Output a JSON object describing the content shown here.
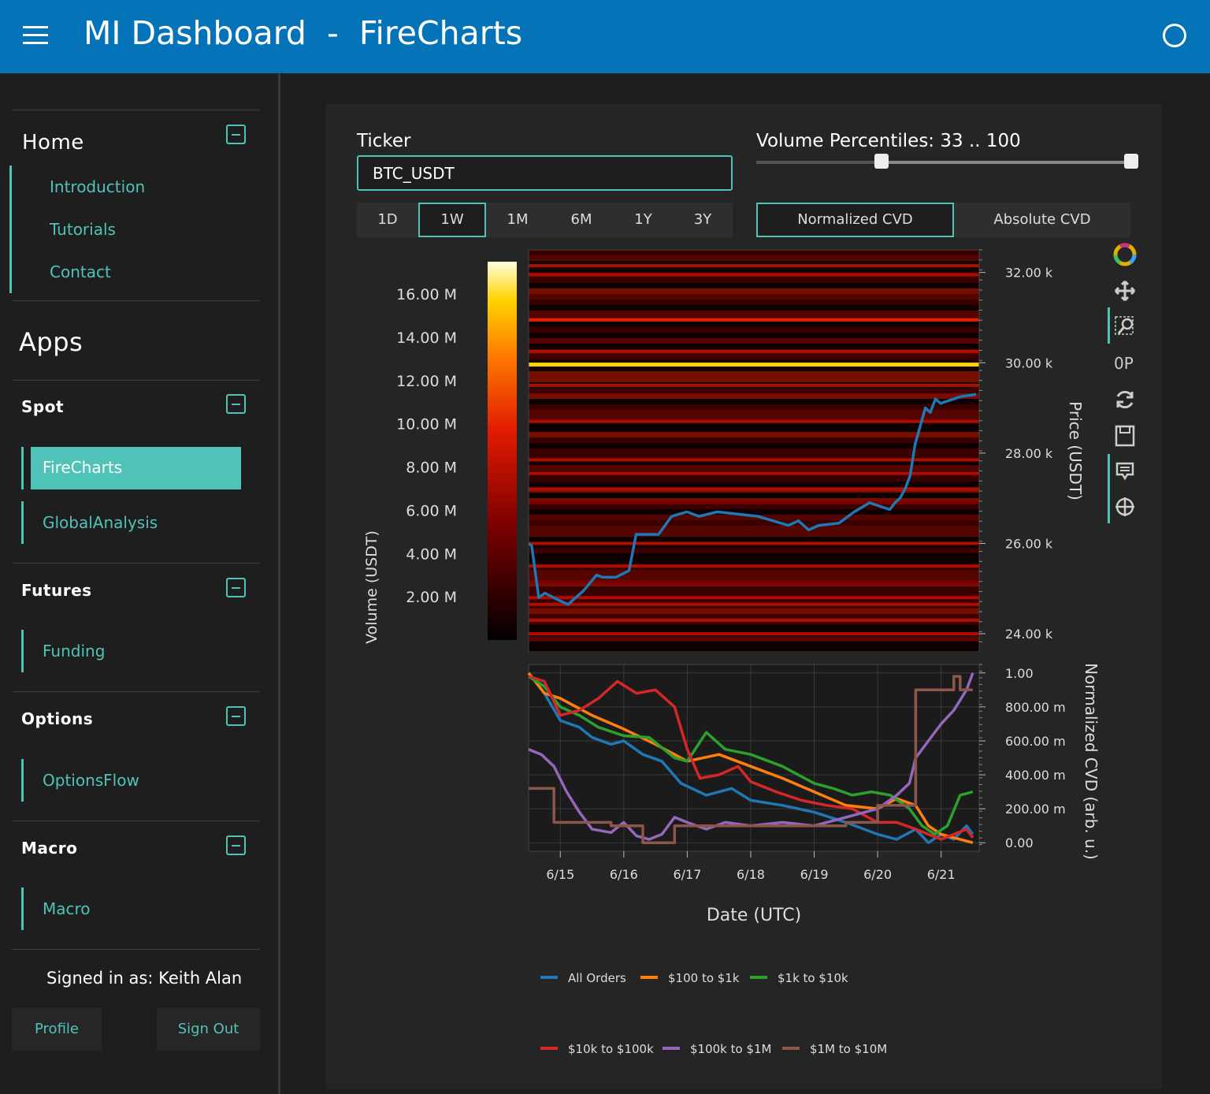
{
  "header": {
    "title": "MI Dashboard  -  FireCharts"
  },
  "sidebar": {
    "home": {
      "title": "Home",
      "links": [
        "Introduction",
        "Tutorials",
        "Contact"
      ]
    },
    "apps_title": "Apps",
    "sections": [
      {
        "title": "Spot",
        "links": [
          "FireCharts",
          "GlobalAnalysis"
        ]
      },
      {
        "title": "Futures",
        "links": [
          "Funding"
        ]
      },
      {
        "title": "Options",
        "links": [
          "OptionsFlow"
        ]
      },
      {
        "title": "Macro",
        "links": [
          "Macro"
        ]
      }
    ],
    "signed_in": "Signed in as: Keith Alan",
    "profile_label": "Profile",
    "signout_label": "Sign Out"
  },
  "controls": {
    "ticker_label": "Ticker",
    "ticker_value": "BTC_USDT",
    "volume_label": "Volume Percentiles: 33 .. 100",
    "volume_range": [
      33,
      100
    ],
    "timeframes": [
      "1D",
      "1W",
      "1M",
      "6M",
      "1Y",
      "3Y"
    ],
    "timeframe_selected": "1W",
    "cvd_modes": [
      "Normalized CVD",
      "Absolute CVD"
    ],
    "cvd_selected": "Normalized CVD"
  },
  "colors": {
    "accent": "#4fc3b8",
    "header": "#0473b8",
    "all_orders": "#1f77b4",
    "s100_1k": "#ff7f0e",
    "s1k_10k": "#2ca02c",
    "s10k_100k": "#d62728",
    "s100k_1m": "#9467bd",
    "s1m_10m": "#8c564b"
  },
  "modebar_icons": [
    "plotly-logo-icon",
    "pan-icon",
    "zoom-icon",
    "compare-icon",
    "reset-icon",
    "save-icon",
    "hover-icon",
    "crosshair-icon"
  ],
  "chart_data": [
    {
      "type": "heatmap",
      "colorbar_title": "Volume (USDT)",
      "colorbar_ticks": [
        "16.00 M",
        "14.00 M",
        "12.00 M",
        "10.00 M",
        "8.00 M",
        "6.00 M",
        "4.00 M",
        "2.00 M"
      ],
      "colorbar_range": [
        0,
        17500000
      ],
      "ylabel": "Price (USDT)",
      "y_ticks": [
        "32.00 k",
        "30.00 k",
        "28.00 k",
        "26.00 k",
        "24.00 k"
      ],
      "ylim": [
        23600,
        32500
      ],
      "price_series": {
        "name": "price",
        "x": [
          6.14,
          6.17,
          6.24,
          6.3,
          6.43,
          6.53,
          6.68,
          6.81,
          6.87,
          7.0,
          7.13,
          7.2,
          7.42,
          7.55,
          7.7,
          7.82,
          8.0,
          8.4,
          8.7,
          8.8,
          8.9,
          9.0,
          9.2,
          9.35,
          9.5,
          9.7,
          9.75,
          9.8,
          9.85,
          9.9,
          9.95,
          10.0,
          10.05,
          10.1,
          10.15,
          10.2,
          10.4,
          10.55
        ],
        "y": [
          26000,
          25950,
          24800,
          24900,
          24750,
          24650,
          24950,
          25300,
          25250,
          25250,
          25400,
          26200,
          26200,
          26600,
          26700,
          26600,
          26700,
          26600,
          26400,
          26500,
          26300,
          26400,
          26450,
          26700,
          26900,
          26750,
          26900,
          27000,
          27200,
          27500,
          28200,
          28600,
          29000,
          28900,
          29200,
          29100,
          29250,
          29300
        ]
      },
      "bands": [
        {
          "price": 29960,
          "volume": 16000000
        },
        {
          "price": 31950,
          "volume": 7000000
        },
        {
          "price": 32150,
          "volume": 6000000
        },
        {
          "price": 30950,
          "volume": 8000000
        },
        {
          "price": 30250,
          "volume": 6500000
        },
        {
          "price": 29500,
          "volume": 5000000
        },
        {
          "price": 28700,
          "volume": 5500000
        },
        {
          "price": 27850,
          "volume": 6000000
        },
        {
          "price": 27550,
          "volume": 5000000
        },
        {
          "price": 27200,
          "volume": 4500000
        },
        {
          "price": 26900,
          "volume": 4000000
        },
        {
          "price": 26000,
          "volume": 4500000
        },
        {
          "price": 25500,
          "volume": 5000000
        },
        {
          "price": 25150,
          "volume": 4000000
        },
        {
          "price": 24800,
          "volume": 5500000
        },
        {
          "price": 24650,
          "volume": 4500000
        },
        {
          "price": 24300,
          "volume": 5000000
        },
        {
          "price": 24000,
          "volume": 4500000
        }
      ]
    },
    {
      "type": "line",
      "xlabel": "Date (UTC)",
      "ylabel": "Normalized CVD (arb. u.)",
      "x_ticks": [
        "6/15",
        "6/16",
        "6/17",
        "6/18",
        "6/19",
        "6/20",
        "6/21"
      ],
      "y_ticks": [
        "1.00",
        "800.00 m",
        "600.00 m",
        "400.00 m",
        "200.00 m",
        "0.00"
      ],
      "xlim": [
        14.5,
        21.6
      ],
      "ylim": [
        -0.05,
        1.05
      ],
      "series": [
        {
          "name": "All Orders",
          "x": [
            14.5,
            14.75,
            15.0,
            15.3,
            15.5,
            15.8,
            16.0,
            16.3,
            16.6,
            16.9,
            17.3,
            17.7,
            18.0,
            18.5,
            19.0,
            19.5,
            20.0,
            20.3,
            20.6,
            20.8,
            21.0,
            21.2,
            21.4,
            21.5
          ],
          "y": [
            1.0,
            0.88,
            0.72,
            0.68,
            0.62,
            0.58,
            0.6,
            0.52,
            0.48,
            0.35,
            0.28,
            0.32,
            0.25,
            0.22,
            0.18,
            0.12,
            0.05,
            0.02,
            0.08,
            0.0,
            0.05,
            0.02,
            0.1,
            0.05
          ]
        },
        {
          "name": "$100 to $1k",
          "x": [
            14.5,
            14.75,
            15.0,
            15.5,
            16.0,
            16.5,
            17.0,
            17.5,
            18.0,
            18.5,
            19.0,
            19.5,
            20.0,
            20.3,
            20.6,
            20.8,
            21.0,
            21.3,
            21.5
          ],
          "y": [
            1.0,
            0.88,
            0.85,
            0.75,
            0.67,
            0.58,
            0.48,
            0.52,
            0.45,
            0.38,
            0.3,
            0.22,
            0.2,
            0.26,
            0.22,
            0.1,
            0.05,
            0.02,
            0.0
          ]
        },
        {
          "name": "$1k to $10k",
          "x": [
            14.5,
            14.75,
            15.0,
            15.3,
            15.6,
            16.0,
            16.4,
            16.8,
            17.0,
            17.3,
            17.6,
            18.0,
            18.5,
            19.0,
            19.3,
            19.6,
            19.9,
            20.2,
            20.5,
            20.7,
            20.9,
            21.1,
            21.3,
            21.5
          ],
          "y": [
            0.98,
            0.92,
            0.8,
            0.75,
            0.68,
            0.63,
            0.62,
            0.5,
            0.48,
            0.65,
            0.55,
            0.52,
            0.45,
            0.35,
            0.32,
            0.28,
            0.3,
            0.28,
            0.2,
            0.1,
            0.05,
            0.1,
            0.28,
            0.3
          ]
        },
        {
          "name": "$10k to $100k",
          "x": [
            14.5,
            14.75,
            15.0,
            15.3,
            15.6,
            15.9,
            16.2,
            16.5,
            16.8,
            17.0,
            17.2,
            17.5,
            17.8,
            18.0,
            18.4,
            18.8,
            19.2,
            19.6,
            20.0,
            20.3,
            20.6,
            20.8,
            21.0,
            21.2,
            21.4,
            21.5
          ],
          "y": [
            0.98,
            0.95,
            0.75,
            0.78,
            0.85,
            0.95,
            0.88,
            0.9,
            0.8,
            0.55,
            0.38,
            0.4,
            0.45,
            0.36,
            0.3,
            0.25,
            0.22,
            0.2,
            0.12,
            0.12,
            0.08,
            0.05,
            0.02,
            0.05,
            0.08,
            0.03
          ]
        },
        {
          "name": "$100k to $1M",
          "x": [
            14.5,
            14.7,
            14.9,
            15.1,
            15.3,
            15.5,
            15.8,
            16.0,
            16.2,
            16.4,
            16.6,
            16.8,
            17.0,
            17.3,
            17.6,
            18.0,
            18.5,
            19.0,
            19.5,
            20.0,
            20.3,
            20.5,
            20.6,
            20.8,
            21.0,
            21.2,
            21.4,
            21.5
          ],
          "y": [
            0.55,
            0.52,
            0.45,
            0.3,
            0.18,
            0.08,
            0.06,
            0.12,
            0.04,
            0.02,
            0.05,
            0.15,
            0.12,
            0.08,
            0.12,
            0.1,
            0.12,
            0.1,
            0.15,
            0.2,
            0.28,
            0.35,
            0.5,
            0.6,
            0.7,
            0.78,
            0.9,
            1.0
          ]
        },
        {
          "name": "$1M to $10M",
          "x": [
            14.5,
            14.8,
            14.9,
            15.5,
            15.8,
            16.0,
            16.3,
            16.6,
            16.8,
            17.0,
            18.0,
            19.0,
            19.5,
            20.0,
            20.5,
            20.6,
            20.7,
            21.0,
            21.2,
            21.3,
            21.5
          ],
          "y": [
            0.32,
            0.32,
            0.12,
            0.12,
            0.1,
            0.1,
            0.0,
            0.0,
            0.1,
            0.1,
            0.1,
            0.1,
            0.12,
            0.22,
            0.22,
            0.9,
            0.9,
            0.9,
            0.98,
            0.9,
            0.9
          ]
        }
      ]
    }
  ]
}
